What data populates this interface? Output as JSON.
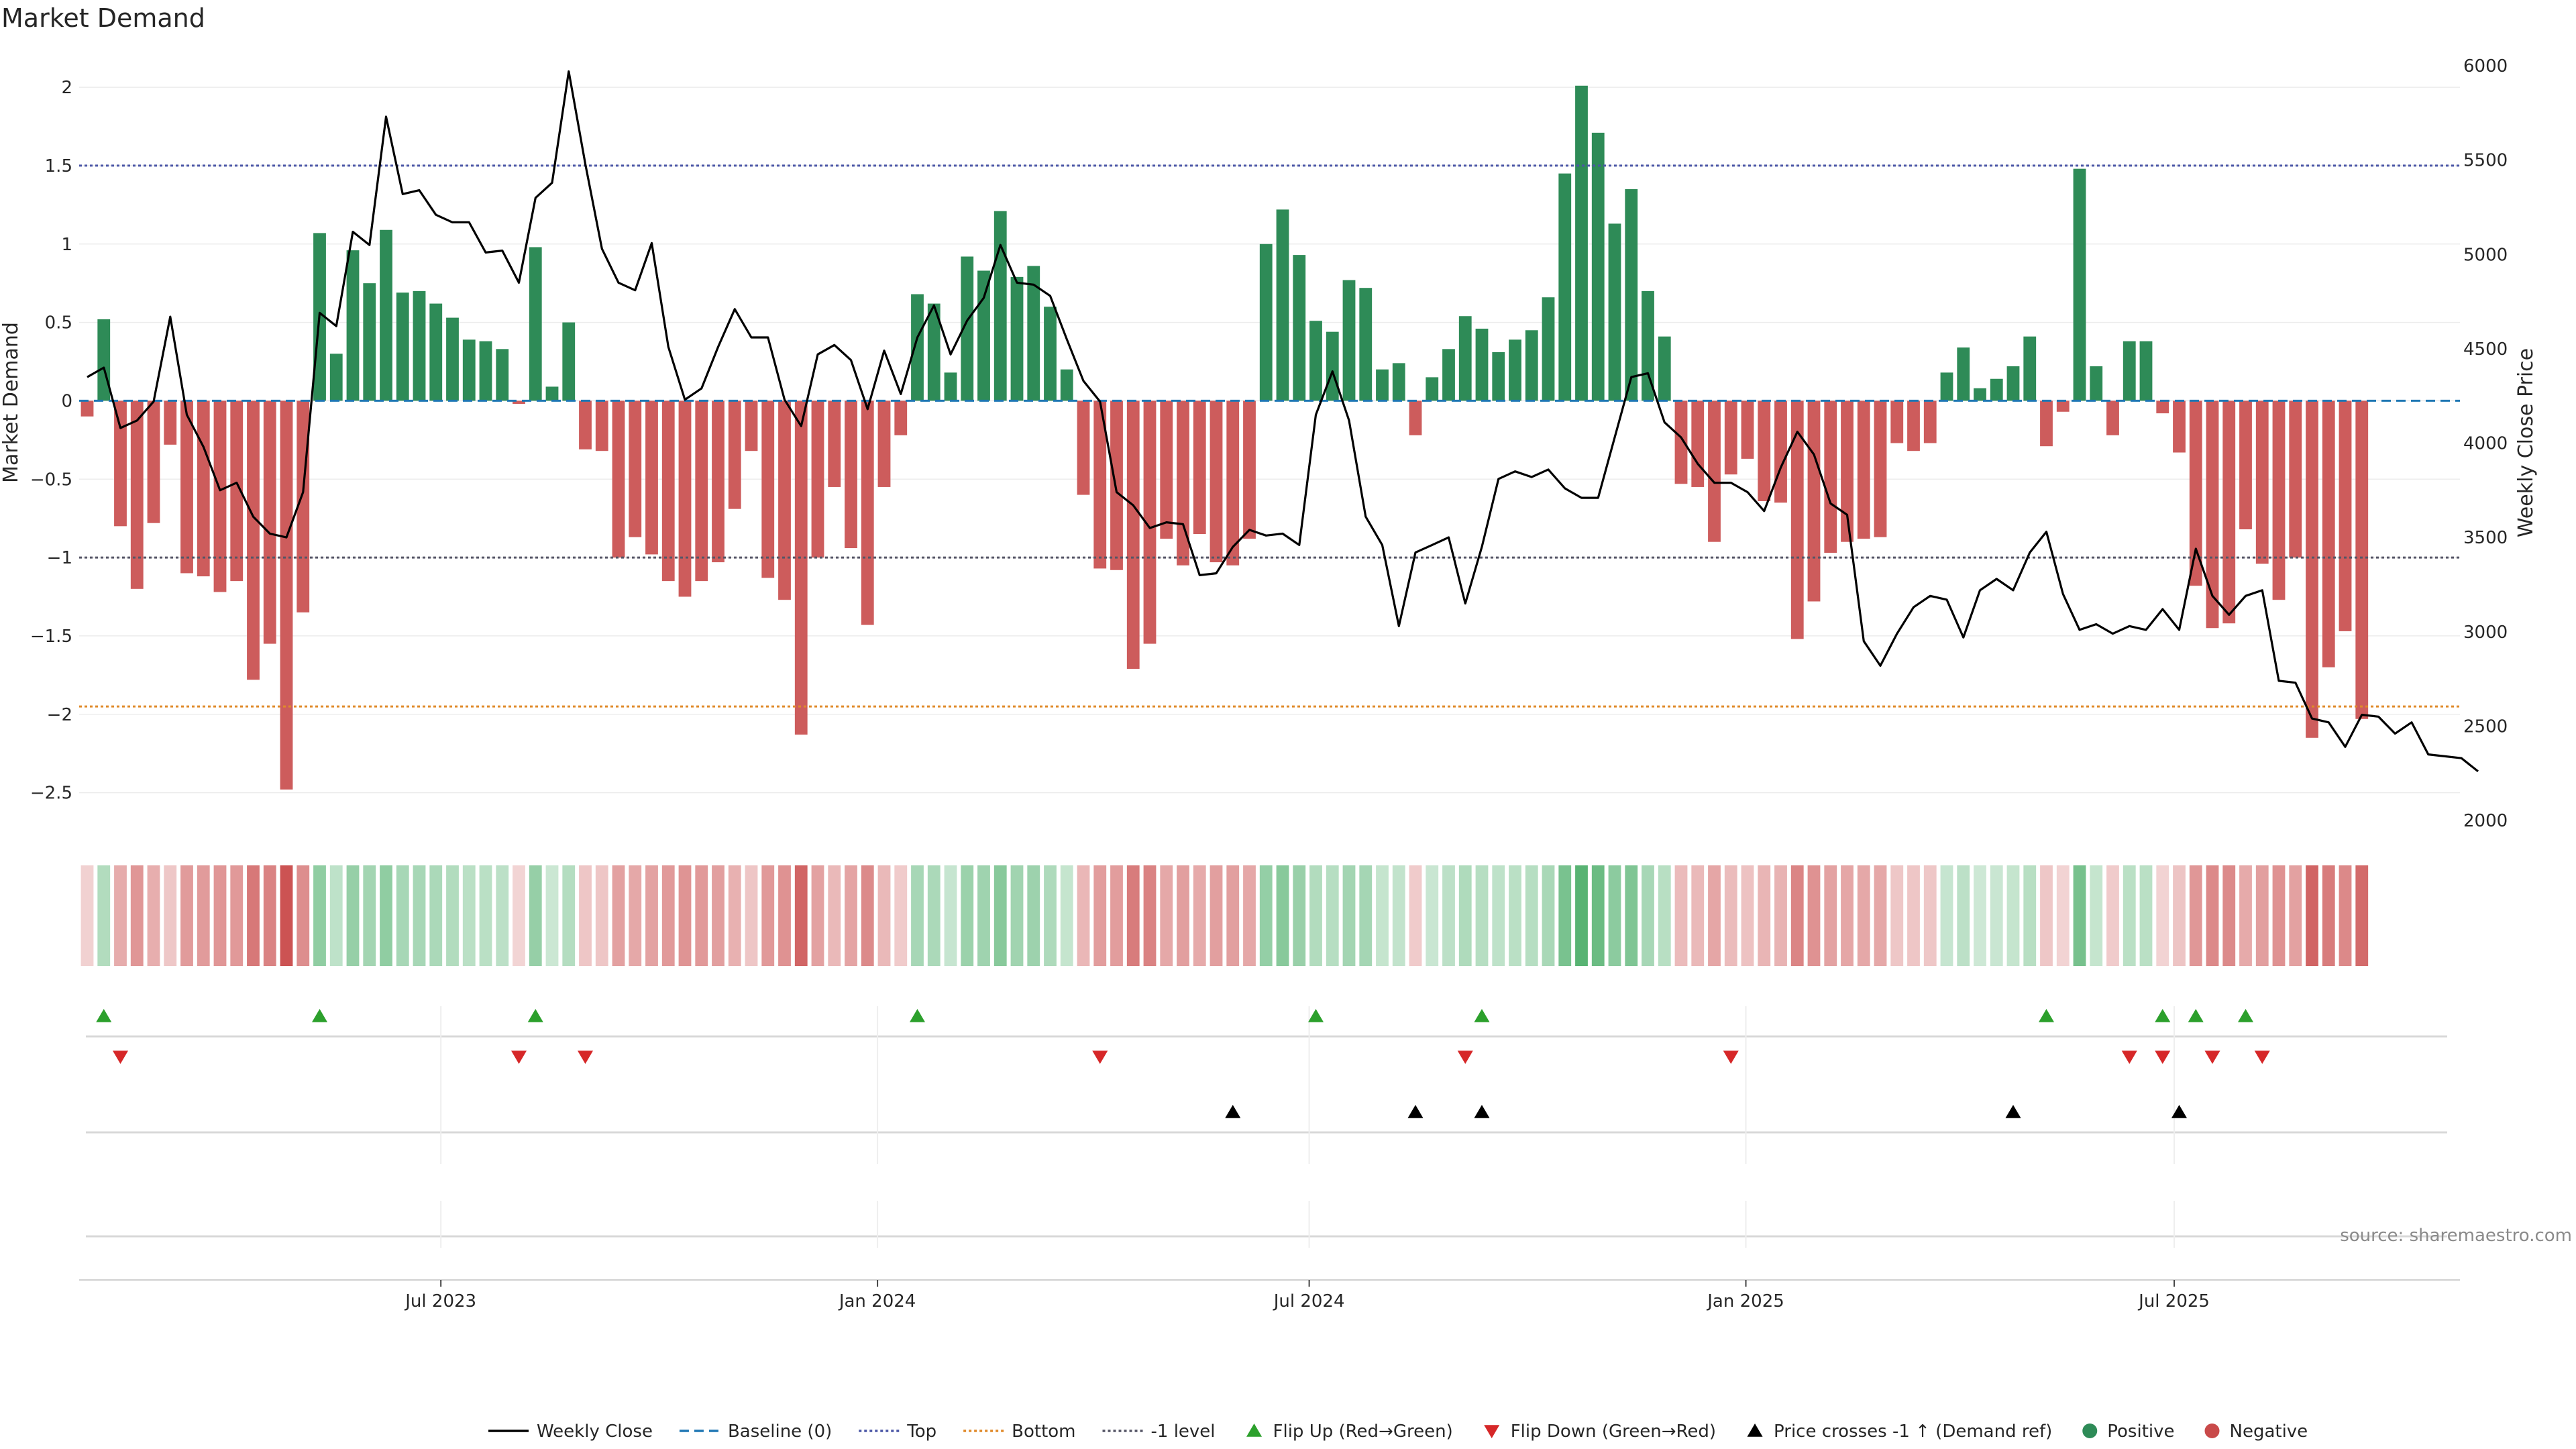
{
  "chart_data": {
    "type": "bar",
    "title": "Market Demand",
    "ylabel": "Market Demand",
    "y2label": "Weekly Close Price",
    "ylim": [
      -2.75,
      2.3
    ],
    "y2lim": [
      2000,
      6000
    ],
    "yticks": [
      2,
      1.5,
      1,
      0.5,
      0,
      -0.5,
      -1,
      -1.5,
      -2,
      -2.5
    ],
    "ytick_labels": [
      "2",
      "1.5",
      "1",
      "0.5",
      "0",
      "−0.5",
      "−1",
      "−1.5",
      "−2",
      "−2.5"
    ],
    "y2ticks": [
      6000,
      5500,
      5000,
      4500,
      4000,
      3500,
      3000,
      2500,
      2000
    ],
    "x_start": "2023-01-06",
    "x_interval_days": 7,
    "xticks": [
      {
        "label": "Jul 2023",
        "week": 21.3
      },
      {
        "label": "Jan 2024",
        "week": 47.6
      },
      {
        "label": "Jul 2024",
        "week": 73.6
      },
      {
        "label": "Jan 2025",
        "week": 99.9
      },
      {
        "label": "Jul 2025",
        "week": 125.7
      }
    ],
    "reference_lines": {
      "baseline": 0,
      "top": 1.5,
      "bottom": -1.95,
      "minus_one": -1
    },
    "series": [
      {
        "name": "Market Demand",
        "values": [
          -0.1,
          0.52,
          -0.8,
          -1.2,
          -0.78,
          -0.28,
          -1.1,
          -1.12,
          -1.22,
          -1.15,
          -1.78,
          -1.55,
          -2.48,
          -1.35,
          1.07,
          0.3,
          0.96,
          0.75,
          1.09,
          0.69,
          0.7,
          0.62,
          0.53,
          0.39,
          0.38,
          0.33,
          -0.02,
          0.98,
          0.09,
          0.5,
          -0.31,
          -0.32,
          -1.0,
          -0.87,
          -0.98,
          -1.15,
          -1.25,
          -1.15,
          -1.03,
          -0.69,
          -0.32,
          -1.13,
          -1.27,
          -2.13,
          -1.0,
          -0.55,
          -0.94,
          -1.43,
          -0.55,
          -0.22,
          0.68,
          0.62,
          0.18,
          0.92,
          0.83,
          1.21,
          0.79,
          0.86,
          0.6,
          0.2,
          -0.6,
          -1.07,
          -1.08,
          -1.71,
          -1.55,
          -0.88,
          -1.05,
          -0.85,
          -1.03,
          -1.05,
          -0.88,
          1.0,
          1.22,
          0.93,
          0.51,
          0.44,
          0.77,
          0.72,
          0.2,
          0.24,
          -0.22,
          0.15,
          0.33,
          0.54,
          0.46,
          0.31,
          0.39,
          0.45,
          0.66,
          1.45,
          2.01,
          1.71,
          1.13,
          1.35,
          0.7,
          0.41,
          -0.53,
          -0.55,
          -0.9,
          -0.47,
          -0.37,
          -0.64,
          -0.65,
          -1.52,
          -1.28,
          -0.97,
          -0.9,
          -0.88,
          -0.87,
          -0.27,
          -0.32,
          -0.27,
          0.18,
          0.34,
          0.08,
          0.14,
          0.22,
          0.41,
          -0.29,
          -0.07,
          1.48,
          0.22,
          -0.22,
          0.38,
          0.38,
          -0.08,
          -0.33,
          -1.18,
          -1.45,
          -1.42,
          -0.82,
          -1.04,
          -1.27,
          -1.0,
          -2.15,
          -1.7,
          -1.47,
          -2.03
        ]
      },
      {
        "name": "Weekly Close",
        "axis": "right",
        "values": [
          4350,
          4400,
          4080,
          4120,
          4220,
          4670,
          4150,
          3980,
          3750,
          3790,
          3610,
          3520,
          3500,
          3740,
          4690,
          4620,
          5120,
          5050,
          5730,
          5320,
          5340,
          5210,
          5170,
          5170,
          5010,
          5020,
          4850,
          5300,
          5380,
          5970,
          5480,
          5030,
          4850,
          4810,
          5060,
          4510,
          4230,
          4290,
          4510,
          4710,
          4560,
          4560,
          4230,
          4090,
          4470,
          4520,
          4440,
          4180,
          4490,
          4260,
          4560,
          4730,
          4470,
          4650,
          4770,
          5050,
          4850,
          4840,
          4780,
          4550,
          4330,
          4220,
          3740,
          3670,
          3550,
          3580,
          3570,
          3300,
          3310,
          3450,
          3540,
          3510,
          3520,
          3460,
          4150,
          4380,
          4120,
          3610,
          3460,
          3030,
          3420,
          3460,
          3500,
          3150,
          3450,
          3810,
          3850,
          3820,
          3860,
          3760,
          3710,
          3710,
          4030,
          4350,
          4370,
          4110,
          4030,
          3890,
          3790,
          3790,
          3740,
          3640,
          3870,
          4060,
          3940,
          3680,
          3620,
          2950,
          2820,
          2990,
          3130,
          3190,
          3170,
          2970,
          3220,
          3280,
          3220,
          3420,
          3530,
          3200,
          3010,
          3040,
          2990,
          3030,
          3010,
          3120,
          3010,
          3440,
          3190,
          3090,
          3190,
          3220,
          2740,
          2730,
          2540,
          2520,
          2390,
          2560,
          2550,
          2460,
          2520,
          2350,
          2340,
          2330,
          2260
        ]
      }
    ],
    "heatstrip": "demand-colored strip per week (green positive, red negative, intensity ∝ |demand|)",
    "events": {
      "flip_up_weeks": [
        1,
        14,
        27,
        50,
        74,
        84,
        118,
        125,
        127,
        130
      ],
      "flip_down_weeks": [
        2,
        26,
        30,
        61,
        83,
        99,
        123,
        125,
        128,
        131
      ],
      "price_cross_weeks": [
        69,
        80,
        84,
        116,
        126
      ]
    },
    "legend": [
      {
        "label": "Weekly Close",
        "marker": "line",
        "color": "#000000"
      },
      {
        "label": "Baseline (0)",
        "marker": "dash",
        "color": "#1f77b4"
      },
      {
        "label": "Top",
        "marker": "dot",
        "color": "#4a56a6"
      },
      {
        "label": "Bottom",
        "marker": "dot",
        "color": "#e08a2a"
      },
      {
        "label": "-1 level",
        "marker": "dot",
        "color": "#555566"
      },
      {
        "label": "Flip Up (Red→Green)",
        "marker": "tri-up",
        "color": "#2ca02c"
      },
      {
        "label": "Flip Down (Green→Red)",
        "marker": "tri-down",
        "color": "#d62728"
      },
      {
        "label": "Price crosses -1 ↑ (Demand ref)",
        "marker": "tri-up",
        "color": "#000000"
      },
      {
        "label": "Positive",
        "marker": "dot-circle",
        "color": "#2e8b57"
      },
      {
        "label": "Negative",
        "marker": "dot-circle",
        "color": "#c94a4a"
      }
    ],
    "legend_position": "bottom-center",
    "source_note": "source: sharemaestro.com",
    "colors": {
      "positive": "#2e8b57",
      "negative": "#cd5c5c",
      "top_line": "#4a56a6",
      "bottom_line": "#e08a2a",
      "minus_one_line": "#555566",
      "baseline": "#1f77b4",
      "flip_up": "#2ca02c",
      "flip_down": "#d62728",
      "price_cross": "#000000"
    }
  }
}
